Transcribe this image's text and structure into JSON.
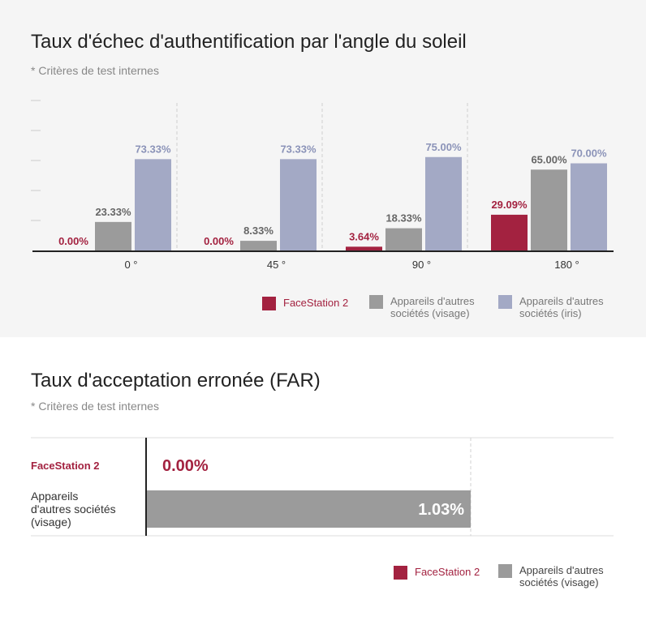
{
  "chart_data": [
    {
      "type": "bar",
      "title": "Taux d'échec d'authentification par l'angle du soleil",
      "subtitle": "* Critères de test internes",
      "categories": [
        "0 °",
        "45 °",
        "90 °",
        "180 °"
      ],
      "ylim": [
        0,
        100
      ],
      "legend_position": "bottom-right",
      "series": [
        {
          "name": "FaceStation 2",
          "color": "#a32240",
          "label_color": "#a32240",
          "values": [
            0.0,
            0.0,
            3.64,
            29.09
          ],
          "labels": [
            "0.00%",
            "0.00%",
            "3.64%",
            "29.09%"
          ]
        },
        {
          "name": "Appareils d'autres sociétés (visage)",
          "color": "#9b9b9b",
          "label_color": "#666666",
          "values": [
            23.33,
            8.33,
            18.33,
            65.0
          ],
          "labels": [
            "23.33%",
            "8.33%",
            "18.33%",
            "65.00%"
          ]
        },
        {
          "name": "Appareils d'autres sociétés (iris)",
          "color": "#a3a9c5",
          "label_color": "#8b93b8",
          "values": [
            73.33,
            73.33,
            75.0,
            70.0
          ],
          "labels": [
            "73.33%",
            "73.33%",
            "75.00%",
            "70.00%"
          ]
        }
      ]
    },
    {
      "type": "bar",
      "orientation": "horizontal",
      "title": "Taux d'acceptation erronée (FAR)",
      "subtitle": "* Critères de test internes",
      "xlim": [
        0,
        1.03
      ],
      "legend_position": "bottom-right",
      "categories": [
        "FaceStation 2",
        "Appareils d'autres sociétés (visage)"
      ],
      "category_lines": [
        [
          "FaceStation 2"
        ],
        [
          "Appareils",
          "d'autres sociétés",
          "(visage)"
        ]
      ],
      "values": [
        0.0,
        1.03
      ],
      "labels": [
        "0.00%",
        "1.03%"
      ],
      "colors": [
        "#a32240",
        "#9b9b9b"
      ],
      "category_colors": [
        "#a32240",
        "#333333"
      ],
      "legend": [
        {
          "name": "FaceStation 2",
          "lines": [
            "FaceStation 2"
          ],
          "color": "#a32240"
        },
        {
          "name": "Appareils d'autres sociétés (visage)",
          "lines": [
            "Appareils d'autres",
            "sociétés (visage)"
          ],
          "color": "#9b9b9b"
        }
      ]
    }
  ],
  "legend1": [
    {
      "lines": [
        "FaceStation 2"
      ],
      "color": "#a32240",
      "text_color": "#a32240"
    },
    {
      "lines": [
        "Appareils d'autres",
        "sociétés (visage)"
      ],
      "color": "#9b9b9b",
      "text_color": "#777777"
    },
    {
      "lines": [
        "Appareils d'autres",
        "sociétés (iris)"
      ],
      "color": "#a3a9c5",
      "text_color": "#777777"
    }
  ]
}
